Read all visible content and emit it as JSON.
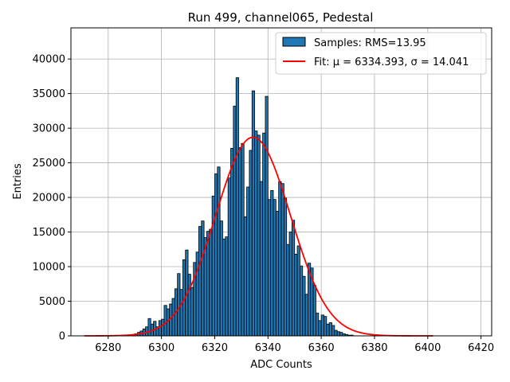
{
  "chart_data": {
    "type": "bar",
    "title": "Run 499, channel065, Pedestal",
    "xlabel": "ADC Counts",
    "ylabel": "Entries",
    "xlim": [
      6266,
      6424
    ],
    "ylim": [
      0,
      44500
    ],
    "xticks": [
      6280,
      6300,
      6320,
      6340,
      6360,
      6380,
      6400,
      6420
    ],
    "yticks": [
      0,
      5000,
      10000,
      15000,
      20000,
      25000,
      30000,
      35000,
      40000
    ],
    "grid": true,
    "legend_position": "top-right",
    "histogram": {
      "name": "Samples: RMS=13.95",
      "bin_start": 6289,
      "bin_width": 1,
      "counts": [
        100,
        300,
        500,
        700,
        1000,
        1300,
        2500,
        1700,
        2100,
        1300,
        2200,
        2400,
        4400,
        3900,
        4600,
        5400,
        6800,
        9000,
        6700,
        11000,
        12400,
        8900,
        7000,
        10600,
        12100,
        15800,
        16600,
        14200,
        15100,
        15400,
        20200,
        23400,
        24400,
        16600,
        14000,
        14300,
        22800,
        27100,
        33200,
        37300,
        27200,
        27800,
        17200,
        21500,
        26800,
        35400,
        29600,
        29000,
        22300,
        29300,
        34600,
        19700,
        21000,
        19700,
        18000,
        22300,
        22000,
        19900,
        13200,
        15000,
        16700,
        11800,
        13000,
        10100,
        8600,
        6000,
        10500,
        9800,
        7300,
        3300,
        2200,
        3000,
        2800,
        1700,
        1900,
        1500,
        800,
        600,
        500,
        300,
        200,
        100,
        100
      ],
      "fill_color": "#1f77b4",
      "edge_color": "#000000"
    },
    "fit": {
      "name": "Fit: μ = 6334.393, σ = 14.041",
      "type": "gaussian",
      "mu": 6334.393,
      "sigma": 14.041,
      "amplitude": 28700,
      "x_range": [
        6271,
        6402
      ],
      "color": "#ff0000"
    }
  }
}
